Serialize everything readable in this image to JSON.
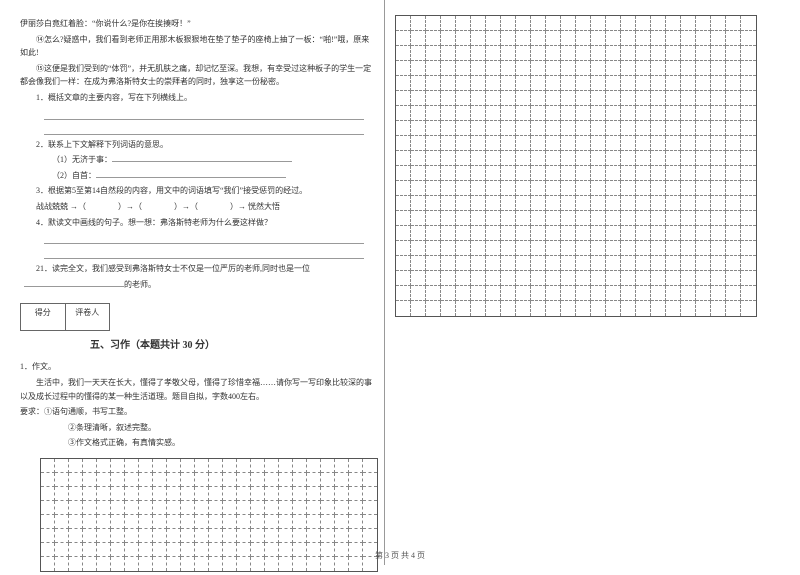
{
  "leftColumn": {
    "para1": "伊丽莎白竟红着脸：“你说什么?是你在挨揍呀！”",
    "para2": "⑭怎么?疑惑中，我们看到老师正用那木板狠狠地在垫了垫子的座椅上抽了一板：“啪!”哦，原来如此!",
    "para3": "⑮这便是我们受到的“体罚”，并无肌肤之痛，却记忆至深。我想，有幸受过这种板子的学生一定都会像我们一样：在成为弗洛斯特女士的崇拜者的同时，独享这一份秘密。",
    "q1": "1．概括文章的主要内容，写在下列横线上。",
    "q2": "2．联系上下文解释下列词语的意思。",
    "q2_1": "（1）无济于事：",
    "q2_2": "（2）自首：",
    "q3": "3．根据第5至第14自然段的内容，用文中的词语填写“我们”接受惩罚的经过。",
    "q3_flow": "战战兢兢 →（　　　　）→（　　　　）→（　　　　）→ 恍然大悟",
    "q4": "4．默读文中画线的句子。想一想：弗洛斯特老师为什么要这样做？",
    "q21": "21．读完全文，我们感受到弗洛斯特女士不仅是一位严厉的老师,同时也是一位",
    "q21_end": "的老师。",
    "scoreLabels": {
      "score": "得分",
      "reviewer": "评卷人"
    },
    "sectionTitle": "五、习作（本题共计 30 分）",
    "composition": {
      "label": "1．作文。",
      "intro": "生活中，我们一天天在长大，懂得了孝敬父母，懂得了珍惜幸福……请你写一写印象比较深的事以及成长过程中的懂得的某一种生活道理。题目自拟，字数400左右。",
      "req": "要求：①语句通顺，书写工整。",
      "req2": "②条理清晰，叙述完整。",
      "req3": "③作文格式正确，有真情实感。"
    }
  },
  "gridLeft": {
    "cols": 24,
    "rows": 8,
    "cellSize": 14
  },
  "gridRight": {
    "cols": 24,
    "rows": 20,
    "cellSize": 15
  },
  "footer": "第 3 页 共 4 页",
  "colors": {
    "text": "#333333",
    "border": "#666666",
    "gridBorder": "#555555",
    "dash": "#888888"
  }
}
